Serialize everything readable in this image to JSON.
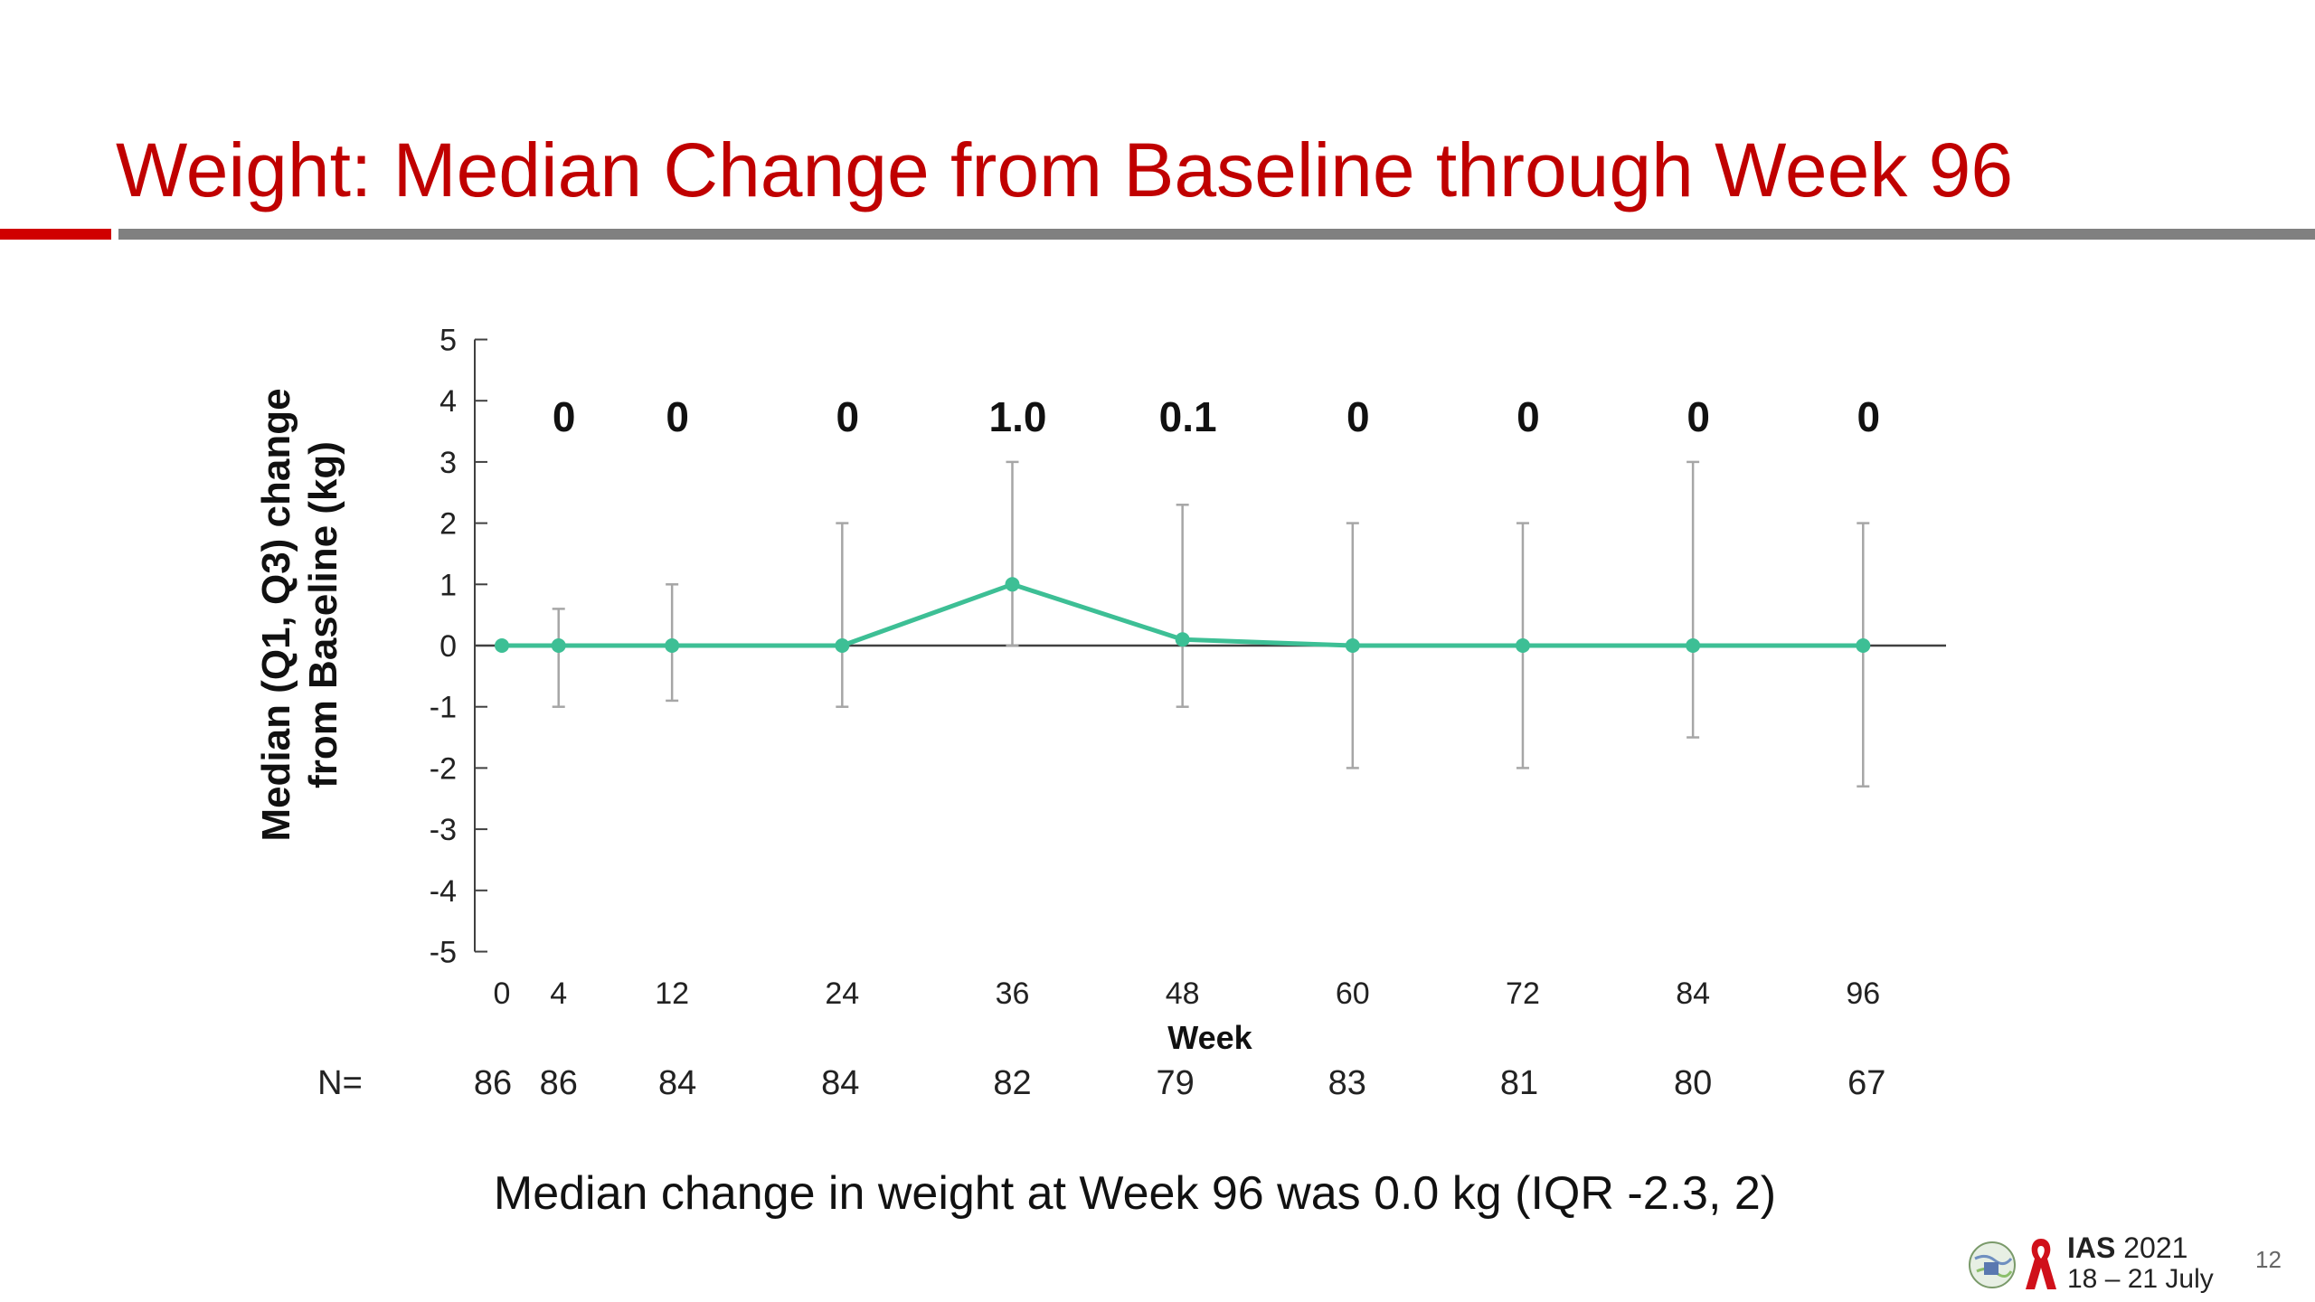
{
  "slide": {
    "title": "Weight: Median Change from Baseline through Week 96",
    "footnote": "Median change in weight at Week 96 was 0.0 kg (IQR -2.3, 2)",
    "page_number": "12",
    "logo": {
      "name": "IAS",
      "year": "2021",
      "dates": "18 – 21 July"
    }
  },
  "colors": {
    "title": "#c00000",
    "series": "#3dbf95",
    "error_bar": "#a6a6a6",
    "axis": "#404040",
    "rule_red": "#d00000",
    "rule_gray": "#808080"
  },
  "chart_data": {
    "type": "line",
    "title": "",
    "xlabel": "Week",
    "ylabel": "Median (Q1, Q3)  change from Baseline (kg)",
    "ylabel_lines": [
      "Median (Q1, Q3)  change",
      "from Baseline (kg)"
    ],
    "ylim": [
      -5,
      5
    ],
    "yticks": [
      5,
      4,
      3,
      2,
      1,
      0,
      -1,
      -2,
      -3,
      -4,
      -5
    ],
    "yticks_labels": [
      "5",
      "4",
      "3",
      "2",
      "1",
      "0",
      "-1",
      "-2",
      "-3",
      "-4",
      "-5"
    ],
    "x": [
      0,
      4,
      12,
      24,
      36,
      48,
      60,
      72,
      84,
      96
    ],
    "x_labels": [
      "0",
      "4",
      "12",
      "24",
      "36",
      "48",
      "60",
      "72",
      "84",
      "96"
    ],
    "series": [
      {
        "values": [
          0,
          0,
          0,
          0,
          1.0,
          0.1,
          0,
          0,
          0,
          0
        ],
        "q1": [
          null,
          -1,
          -0.9,
          -1,
          0,
          -1,
          -2,
          -2,
          -1.5,
          -2.3
        ],
        "q3": [
          null,
          0.6,
          1,
          2,
          3,
          2.3,
          2,
          2,
          3,
          2
        ]
      }
    ],
    "data_label_x": [
      4,
      12,
      24,
      36,
      48,
      60,
      72,
      84,
      96
    ],
    "data_labels": [
      "0",
      "0",
      "0",
      "1.0",
      "0.1",
      "0",
      "0",
      "0",
      "0"
    ],
    "n_label": "N=",
    "n_values": [
      "86",
      "86",
      "84",
      "84",
      "82",
      "79",
      "83",
      "81",
      "80",
      "67"
    ],
    "grid": false,
    "legend": "none"
  }
}
